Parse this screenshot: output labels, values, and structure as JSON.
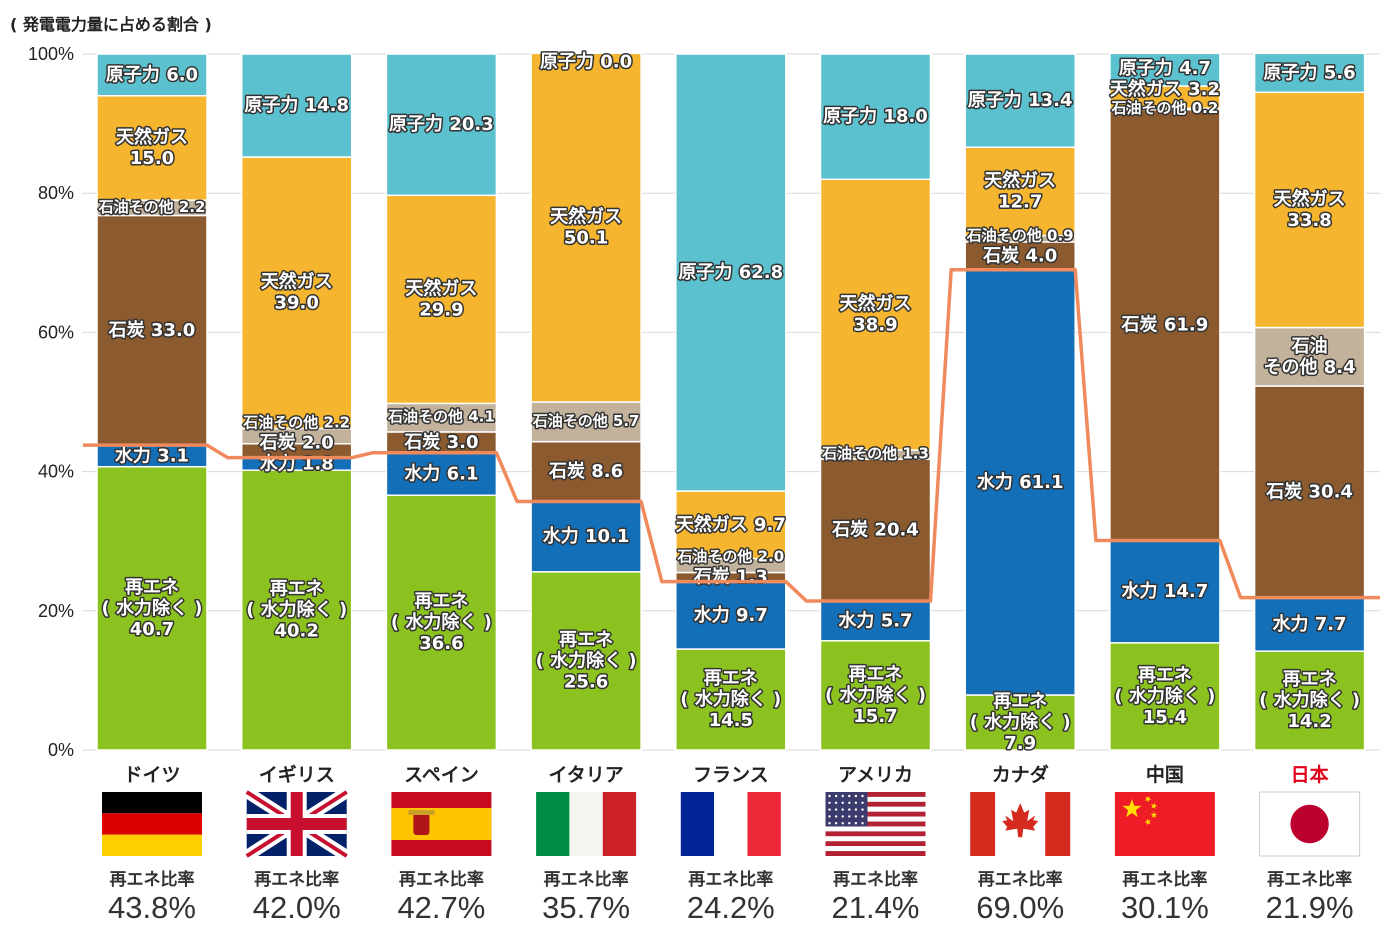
{
  "chart_data": {
    "type": "bar",
    "stacked": true,
    "title": "( 発電電力量に占める割合 )",
    "ylim": [
      0,
      100
    ],
    "yticks": [
      "0%",
      "20%",
      "40%",
      "60%",
      "80%",
      "100%"
    ],
    "grid": true,
    "colors": {
      "renew": "#8cc21f",
      "hydro": "#146fb9",
      "coal": "#8b5a2f",
      "oil": "#c2b29b",
      "gas": "#f6b52e",
      "nuclear": "#5bc1cf",
      "line": "#f08a5d",
      "highlight": "#e0001b"
    },
    "ratio_label": "再エネ比率",
    "countries": [
      {
        "name": "ドイツ",
        "flag": "germany-flag",
        "ratio": "43.8%",
        "segments": [
          {
            "type": "renew",
            "value": 40.7,
            "label": [
              "再エネ",
              "( 水力除く )",
              "40.7"
            ]
          },
          {
            "type": "hydro",
            "value": 3.1,
            "label": [
              "水力 3.1"
            ]
          },
          {
            "type": "coal",
            "value": 33.0,
            "label": [
              "石炭 33.0"
            ]
          },
          {
            "type": "oil",
            "value": 2.2,
            "label": [
              "石油その他 2.2"
            ]
          },
          {
            "type": "gas",
            "value": 15.0,
            "label": [
              "天然ガス",
              "15.0"
            ]
          },
          {
            "type": "nuclear",
            "value": 6.0,
            "label": [
              "原子力 6.0"
            ]
          }
        ]
      },
      {
        "name": "イギリス",
        "flag": "uk-flag",
        "ratio": "42.0%",
        "segments": [
          {
            "type": "renew",
            "value": 40.2,
            "label": [
              "再エネ",
              "( 水力除く )",
              "40.2"
            ]
          },
          {
            "type": "hydro",
            "value": 1.8,
            "label": [
              "水力 1.8"
            ]
          },
          {
            "type": "coal",
            "value": 2.0,
            "label": [
              "石炭 2.0"
            ]
          },
          {
            "type": "oil",
            "value": 2.2,
            "label": [
              "石油その他 2.2"
            ]
          },
          {
            "type": "gas",
            "value": 39.0,
            "label": [
              "天然ガス",
              "39.0"
            ]
          },
          {
            "type": "nuclear",
            "value": 14.8,
            "label": [
              "原子力 14.8"
            ]
          }
        ]
      },
      {
        "name": "スペイン",
        "flag": "spain-flag",
        "ratio": "42.7%",
        "segments": [
          {
            "type": "renew",
            "value": 36.6,
            "label": [
              "再エネ",
              "( 水力除く )",
              "36.6"
            ]
          },
          {
            "type": "hydro",
            "value": 6.1,
            "label": [
              "水力 6.1"
            ]
          },
          {
            "type": "coal",
            "value": 3.0,
            "label": [
              "石炭 3.0"
            ]
          },
          {
            "type": "oil",
            "value": 4.1,
            "label": [
              "石油その他 4.1"
            ]
          },
          {
            "type": "gas",
            "value": 29.9,
            "label": [
              "天然ガス",
              "29.9"
            ]
          },
          {
            "type": "nuclear",
            "value": 20.3,
            "label": [
              "原子力 20.3"
            ]
          }
        ]
      },
      {
        "name": "イタリア",
        "flag": "italy-flag",
        "ratio": "35.7%",
        "segments": [
          {
            "type": "renew",
            "value": 25.6,
            "label": [
              "再エネ",
              "( 水力除く )",
              "25.6"
            ]
          },
          {
            "type": "hydro",
            "value": 10.1,
            "label": [
              "水力 10.1"
            ]
          },
          {
            "type": "coal",
            "value": 8.6,
            "label": [
              "石炭 8.6"
            ]
          },
          {
            "type": "oil",
            "value": 5.7,
            "label": [
              "石油その他 5.7"
            ]
          },
          {
            "type": "gas",
            "value": 50.1,
            "label": [
              "天然ガス",
              "50.1"
            ]
          },
          {
            "type": "nuclear",
            "value": 0.0,
            "label": [
              "原子力 0.0"
            ]
          }
        ]
      },
      {
        "name": "フランス",
        "flag": "france-flag",
        "ratio": "24.2%",
        "segments": [
          {
            "type": "renew",
            "value": 14.5,
            "label": [
              "再エネ",
              "( 水力除く )",
              "14.5"
            ]
          },
          {
            "type": "hydro",
            "value": 9.7,
            "label": [
              "水力 9.7"
            ]
          },
          {
            "type": "coal",
            "value": 1.3,
            "label": [
              "石炭 1.3"
            ]
          },
          {
            "type": "oil",
            "value": 2.0,
            "label": [
              "石油その他 2.0"
            ]
          },
          {
            "type": "gas",
            "value": 9.7,
            "label": [
              "天然ガス 9.7"
            ]
          },
          {
            "type": "nuclear",
            "value": 62.8,
            "label": [
              "原子力 62.8"
            ]
          }
        ]
      },
      {
        "name": "アメリカ",
        "flag": "usa-flag",
        "ratio": "21.4%",
        "segments": [
          {
            "type": "renew",
            "value": 15.7,
            "label": [
              "再エネ",
              "( 水力除く )",
              "15.7"
            ]
          },
          {
            "type": "hydro",
            "value": 5.7,
            "label": [
              "水力 5.7"
            ]
          },
          {
            "type": "coal",
            "value": 20.4,
            "label": [
              "石炭 20.4"
            ]
          },
          {
            "type": "oil",
            "value": 1.3,
            "label": [
              "石油その他 1.3"
            ]
          },
          {
            "type": "gas",
            "value": 38.9,
            "label": [
              "天然ガス",
              "38.9"
            ]
          },
          {
            "type": "nuclear",
            "value": 18.0,
            "label": [
              "原子力 18.0"
            ]
          }
        ]
      },
      {
        "name": "カナダ",
        "flag": "canada-flag",
        "ratio": "69.0%",
        "segments": [
          {
            "type": "renew",
            "value": 7.9,
            "label": [
              "再エネ",
              "( 水力除く )",
              "7.9"
            ]
          },
          {
            "type": "hydro",
            "value": 61.1,
            "label": [
              "水力 61.1"
            ]
          },
          {
            "type": "coal",
            "value": 4.0,
            "label": [
              "石炭 4.0"
            ]
          },
          {
            "type": "oil",
            "value": 0.9,
            "label": [
              "石油その他 0.9"
            ]
          },
          {
            "type": "gas",
            "value": 12.7,
            "label": [
              "天然ガス",
              "12.7"
            ]
          },
          {
            "type": "nuclear",
            "value": 13.4,
            "label": [
              "原子力 13.4"
            ]
          }
        ]
      },
      {
        "name": "中国",
        "flag": "china-flag",
        "ratio": "30.1%",
        "segments": [
          {
            "type": "renew",
            "value": 15.4,
            "label": [
              "再エネ",
              "( 水力除く )",
              "15.4"
            ]
          },
          {
            "type": "hydro",
            "value": 14.7,
            "label": [
              "水力 14.7"
            ]
          },
          {
            "type": "coal",
            "value": 61.9,
            "label": [
              "石炭 61.9"
            ]
          },
          {
            "type": "oil",
            "value": 0.2,
            "label": [
              "石油その他 0.2"
            ]
          },
          {
            "type": "gas",
            "value": 3.2,
            "label": [
              "天然ガス 3.2"
            ]
          },
          {
            "type": "nuclear",
            "value": 4.7,
            "label": [
              "原子力 4.7"
            ]
          }
        ]
      },
      {
        "name": "日本",
        "flag": "japan-flag",
        "ratio": "21.9%",
        "highlight": true,
        "segments": [
          {
            "type": "renew",
            "value": 14.2,
            "label": [
              "再エネ",
              "( 水力除く )",
              "14.2"
            ]
          },
          {
            "type": "hydro",
            "value": 7.7,
            "label": [
              "水力 7.7"
            ]
          },
          {
            "type": "coal",
            "value": 30.4,
            "label": [
              "石炭 30.4"
            ]
          },
          {
            "type": "oil",
            "value": 8.4,
            "label": [
              "石油",
              "その他 8.4"
            ]
          },
          {
            "type": "gas",
            "value": 33.8,
            "label": [
              "天然ガス",
              "33.8"
            ]
          },
          {
            "type": "nuclear",
            "value": 5.6,
            "label": [
              "原子力 5.6"
            ]
          }
        ]
      }
    ]
  }
}
